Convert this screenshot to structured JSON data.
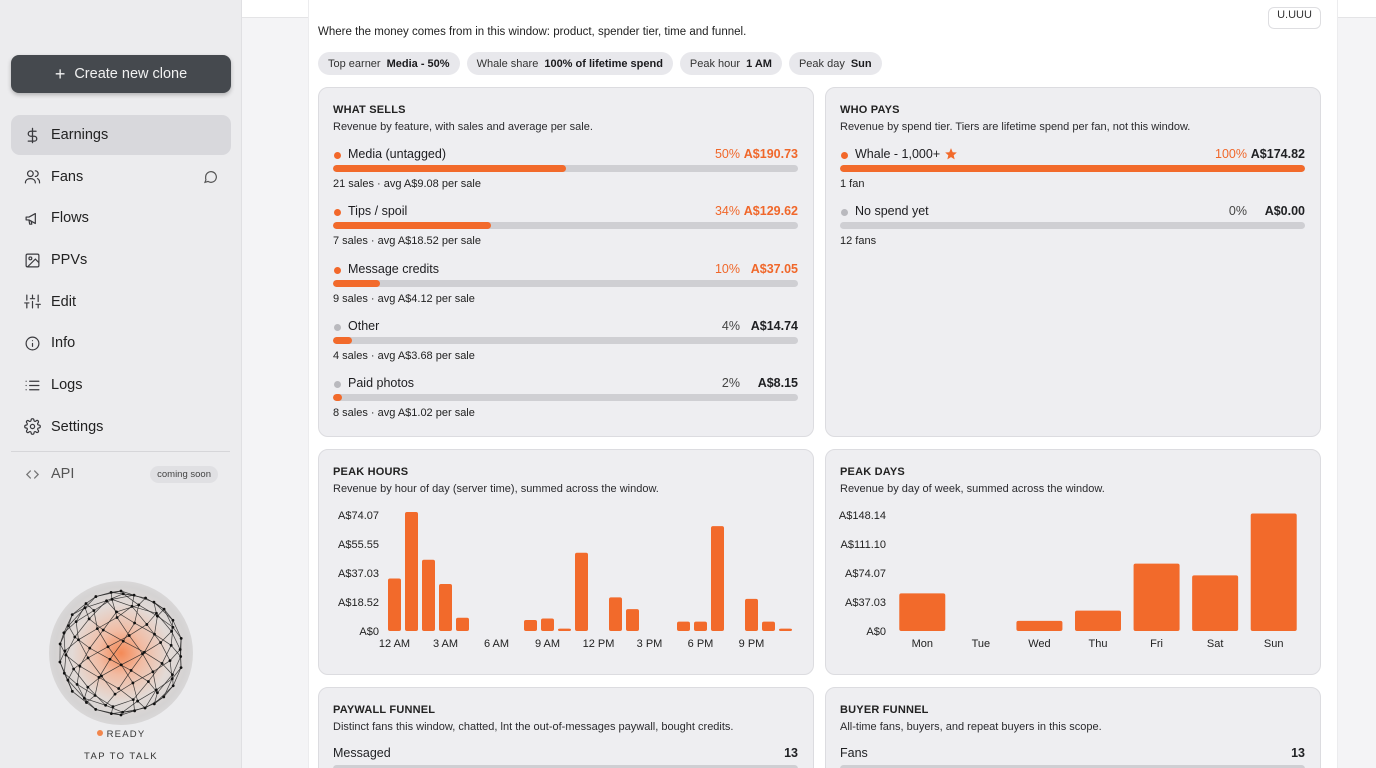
{
  "sidebar": {
    "create_label": "Create new clone",
    "items": [
      {
        "label": "Earnings",
        "icon": "dollar-icon",
        "active": true
      },
      {
        "label": "Fans",
        "icon": "users-icon",
        "trail": "message-icon"
      },
      {
        "label": "Flows",
        "icon": "megaphone-icon"
      },
      {
        "label": "PPVs",
        "icon": "image-icon"
      },
      {
        "label": "Edit",
        "icon": "sliders-icon"
      },
      {
        "label": "Info",
        "icon": "info-icon"
      },
      {
        "label": "Logs",
        "icon": "list-icon"
      },
      {
        "label": "Settings",
        "icon": "gear-icon"
      }
    ],
    "api": {
      "label": "API",
      "badge": "coming soon",
      "icon": "code-icon"
    },
    "status": "READY",
    "tap_label": "TAP TO TALK"
  },
  "header": {
    "corner_chip": "U.UUU",
    "subtitle": "Where the money comes from in this window: product, spender tier, time and funnel.",
    "chips": [
      {
        "label": "Top earner",
        "value": "Media - 50%"
      },
      {
        "label": "Whale share",
        "value": "100% of lifetime spend"
      },
      {
        "label": "Peak hour",
        "value": "1 AM"
      },
      {
        "label": "Peak day",
        "value": "Sun"
      }
    ]
  },
  "what_sells": {
    "title": "WHAT SELLS",
    "subtitle": "Revenue by feature, with sales and average per sale.",
    "rows": [
      {
        "name": "Media (untagged)",
        "pct": "50%",
        "amount": "A$190.73",
        "meta": "21 sales · avg A$9.08 per sale",
        "share": 0.5,
        "highlight": true
      },
      {
        "name": "Tips / spoil",
        "pct": "34%",
        "amount": "A$129.62",
        "meta": "7 sales · avg A$18.52 per sale",
        "share": 0.34,
        "highlight": true
      },
      {
        "name": "Message credits",
        "pct": "10%",
        "amount": "A$37.05",
        "meta": "9 sales · avg A$4.12 per sale",
        "share": 0.1,
        "highlight": true
      },
      {
        "name": "Other",
        "pct": "4%",
        "amount": "A$14.74",
        "meta": "4 sales · avg A$3.68 per sale",
        "share": 0.04,
        "highlight": false
      },
      {
        "name": "Paid photos",
        "pct": "2%",
        "amount": "A$8.15",
        "meta": "8 sales · avg A$1.02 per sale",
        "share": 0.02,
        "highlight": false
      }
    ]
  },
  "who_pays": {
    "title": "WHO PAYS",
    "subtitle": "Revenue by spend tier. Tiers are lifetime spend per fan, not this window.",
    "rows": [
      {
        "name": "Whale - 1,000+",
        "pct": "100%",
        "amount": "A$174.82",
        "meta": "1 fan",
        "share": 1.0,
        "highlight": true,
        "star": true
      },
      {
        "name": "No spend yet",
        "pct": "0%",
        "amount": "A$0.00",
        "meta": "12 fans",
        "share": 0,
        "highlight": false
      }
    ]
  },
  "chart_data": [
    {
      "type": "bar",
      "title": "PEAK HOURS",
      "subtitle": "Revenue by hour of day (server time), summed across the window.",
      "categories": [
        "12 AM",
        "1 AM",
        "2 AM",
        "3 AM",
        "4 AM",
        "5 AM",
        "6 AM",
        "7 AM",
        "8 AM",
        "9 AM",
        "10 AM",
        "11 AM",
        "12 PM",
        "1 PM",
        "2 PM",
        "3 PM",
        "4 PM",
        "5 PM",
        "6 PM",
        "7 PM",
        "8 PM",
        "9 PM",
        "10 PM",
        "11 PM"
      ],
      "tick_labels": [
        "12 AM",
        "3 AM",
        "6 AM",
        "9 AM",
        "12 PM",
        "3 PM",
        "6 PM",
        "9 PM"
      ],
      "values": [
        33.5,
        76.0,
        45.5,
        30.0,
        8.5,
        0,
        0,
        0,
        7.0,
        8.0,
        1.5,
        50.0,
        0,
        21.5,
        14.0,
        0,
        0,
        6.0,
        6.0,
        67.0,
        0,
        20.5,
        6.0,
        1.5
      ],
      "y_ticks": [
        "A$0",
        "A$18.52",
        "A$37.03",
        "A$55.55",
        "A$74.07"
      ],
      "ylim": [
        0,
        77
      ]
    },
    {
      "type": "bar",
      "title": "PEAK DAYS",
      "subtitle": "Revenue by day of week, summed across the window.",
      "categories": [
        "Mon",
        "Tue",
        "Wed",
        "Thu",
        "Fri",
        "Sat",
        "Sun"
      ],
      "values": [
        48.0,
        0,
        13.0,
        26.0,
        86.0,
        71.0,
        150.0
      ],
      "y_ticks": [
        "A$0",
        "A$37.03",
        "A$74.07",
        "A$111.10",
        "A$148.14"
      ],
      "ylim": [
        0,
        152
      ]
    }
  ],
  "paywall_funnel": {
    "title": "PAYWALL FUNNEL",
    "subtitle": "Distinct fans this window, chatted, lnt the out-of-messages paywall, bought credits.",
    "rows": [
      {
        "label": "Messaged",
        "value": "13"
      }
    ]
  },
  "buyer_funnel": {
    "title": "BUYER FUNNEL",
    "subtitle": "All-time fans, buyers, and repeat buyers in this scope.",
    "rows": [
      {
        "label": "Fans",
        "value": "13"
      }
    ]
  },
  "colors": {
    "accent": "#f26a2b",
    "track": "#cfcfd3",
    "card": "#eeeef1"
  }
}
